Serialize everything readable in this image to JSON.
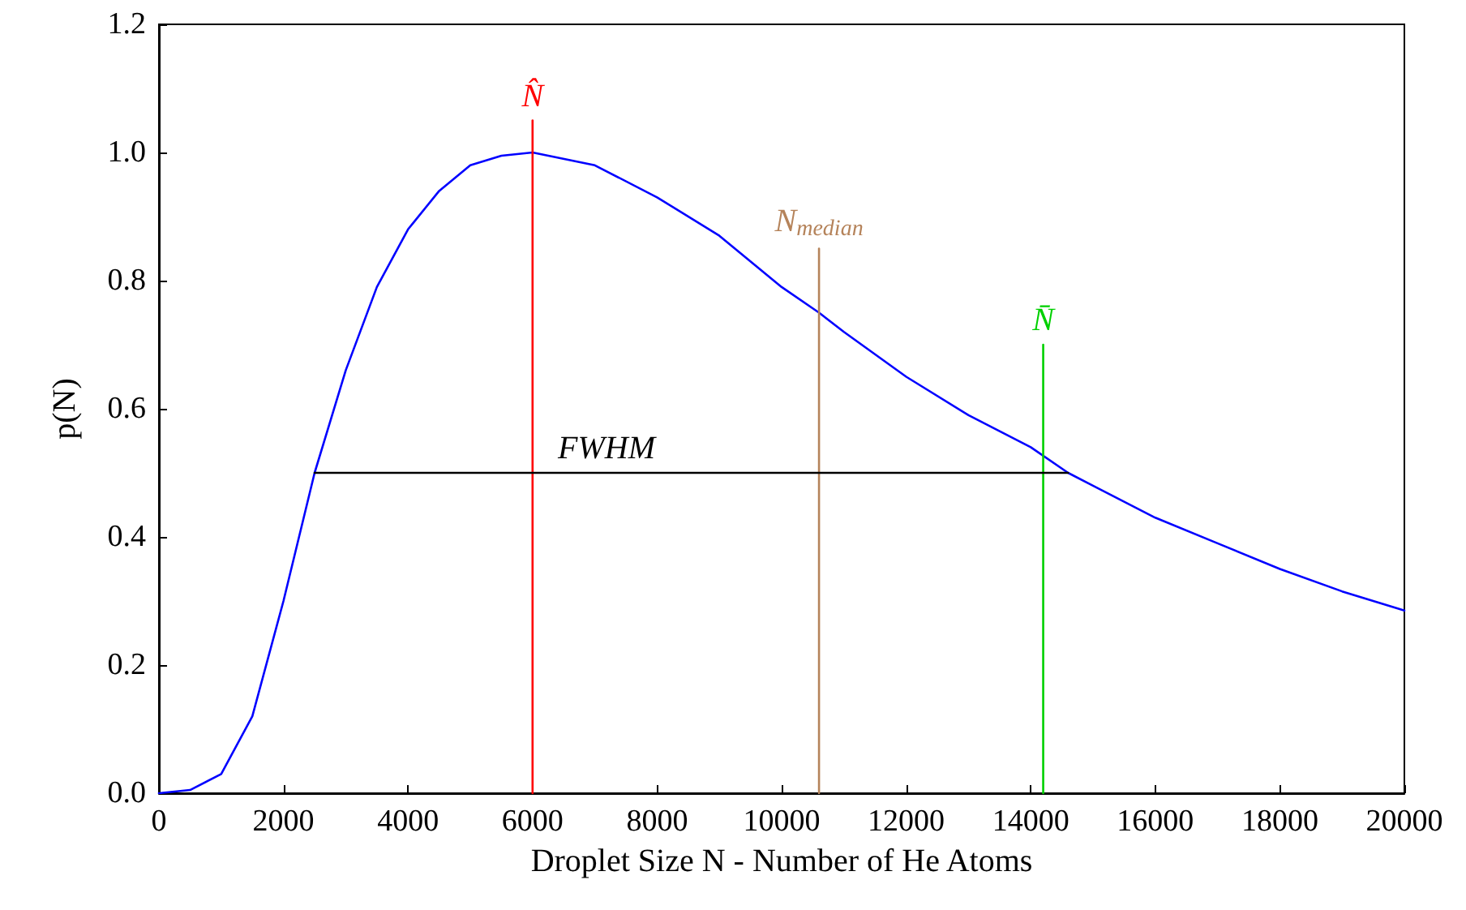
{
  "chart_data": {
    "type": "line",
    "xlabel": "Droplet Size N - Number of He Atoms",
    "ylabel": "p(N)",
    "xlim": [
      0,
      20000
    ],
    "xticks": [
      0,
      2000,
      4000,
      6000,
      8000,
      10000,
      12000,
      14000,
      16000,
      18000,
      20000
    ],
    "ylim": [
      0,
      1.2
    ],
    "yticks": [
      {
        "value": 0,
        "label": "0.0"
      },
      0.2,
      0.4,
      0.6,
      0.8,
      {
        "value": 1,
        "label": "1.0"
      },
      1.2
    ],
    "marker": "none",
    "line_style": "solid",
    "series": [
      {
        "color": "#0000ff",
        "x": [
          0,
          500,
          1000,
          1500,
          2000,
          2500,
          3000,
          3500,
          4000,
          4500,
          5000,
          5500,
          6000,
          7000,
          8000,
          9000,
          10000,
          10600,
          11000,
          12000,
          13000,
          14000,
          14600,
          15000,
          16000,
          17000,
          18000,
          19000,
          20000
        ],
        "values": [
          0,
          0.005,
          0.03,
          0.12,
          0.3,
          0.5,
          0.66,
          0.79,
          0.88,
          0.94,
          0.98,
          0.995,
          1.0,
          0.98,
          0.93,
          0.87,
          0.79,
          0.75,
          0.72,
          0.65,
          0.59,
          0.54,
          0.5,
          0.48,
          0.43,
          0.39,
          0.35,
          0.315,
          0.285
        ]
      },
      {
        "name": "N̂",
        "color": "#ff0000",
        "x": [
          6000,
          6000
        ],
        "values": [
          0,
          1.05
        ]
      },
      {
        "name": "N$_{median}$",
        "color": "#b5835a",
        "x": [
          10600,
          10600
        ],
        "values": [
          0,
          0.85
        ]
      },
      {
        "name": "N̄",
        "color": "#00d000",
        "x": [
          14200,
          14200
        ],
        "values": [
          0,
          0.7
        ]
      },
      {
        "name": "FWHM",
        "color": "#000000",
        "x": [
          2500,
          14600
        ],
        "values": [
          0.5,
          0.5
        ]
      }
    ]
  }
}
